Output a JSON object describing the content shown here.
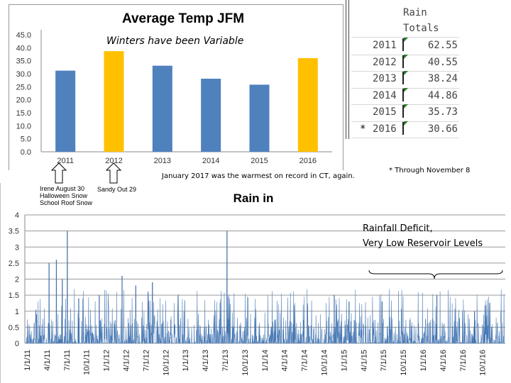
{
  "chart_data": [
    {
      "type": "bar",
      "title": "Average Temp JFM",
      "subtitle": "Winters have been Variable",
      "categories": [
        "2011",
        "2012",
        "2013",
        "2014",
        "2015",
        "2016"
      ],
      "values": [
        31.2,
        38.7,
        33.1,
        28.1,
        25.8,
        36.0
      ],
      "colors": [
        "#4f81bd",
        "#ffc000",
        "#4f81bd",
        "#4f81bd",
        "#4f81bd",
        "#ffc000"
      ],
      "yticks": [
        "0.0",
        "5.0",
        "10.0",
        "15.0",
        "20.0",
        "25.0",
        "30.0",
        "35.0",
        "40.0",
        "45.0"
      ],
      "ylim": [
        0,
        45
      ]
    },
    {
      "type": "table",
      "header": [
        "Rain",
        "Totals"
      ],
      "rows": [
        {
          "marker": "",
          "year": "2011",
          "total": "62.55"
        },
        {
          "marker": "",
          "year": "2012",
          "total": "40.55"
        },
        {
          "marker": "",
          "year": "2013",
          "total": "38.24"
        },
        {
          "marker": "",
          "year": "2014",
          "total": "44.86"
        },
        {
          "marker": "",
          "year": "2015",
          "total": "35.73"
        },
        {
          "marker": "*",
          "year": "2016",
          "total": "30.66"
        }
      ]
    },
    {
      "type": "line",
      "title": "Rain in",
      "yticks": [
        "0",
        "0.5",
        "1",
        "1.5",
        "2",
        "2.5",
        "3",
        "3.5",
        "4"
      ],
      "ylim": [
        0,
        4
      ],
      "xticks": [
        "1/1/11",
        "4/1/11",
        "7/1/11",
        "10/1/11",
        "1/1/12",
        "4/1/12",
        "7/1/12",
        "10/1/12",
        "1/1/13",
        "4/1/13",
        "7/1/13",
        "10/1/13",
        "1/1/14",
        "4/1/14",
        "7/1/14",
        "10/1/14",
        "1/1/15",
        "4/1/15",
        "7/1/15",
        "10/1/15",
        "1/1/16",
        "4/1/16",
        "7/1/16",
        "10/1/16"
      ],
      "peaks": [
        {
          "day": 45,
          "value": 0.9
        },
        {
          "day": 100,
          "value": 2.5
        },
        {
          "day": 132,
          "value": 2.6
        },
        {
          "day": 158,
          "value": 2.0
        },
        {
          "day": 180,
          "value": 3.5
        },
        {
          "day": 230,
          "value": 1.4
        },
        {
          "day": 320,
          "value": 1.5
        },
        {
          "day": 420,
          "value": 2.1
        },
        {
          "day": 480,
          "value": 1.8
        },
        {
          "day": 553,
          "value": 1.9
        },
        {
          "day": 880,
          "value": 3.5
        },
        {
          "day": 1350,
          "value": 1.5
        },
        {
          "day": 1415,
          "value": 1.3
        },
        {
          "day": 1560,
          "value": 1.3
        },
        {
          "day": 1800,
          "value": 1.5
        },
        {
          "day": 1965,
          "value": 1.0
        }
      ]
    }
  ],
  "annotations": {
    "through_note": "* Through November 8",
    "january_note": "January 2017 was the warmest on record in CT, again.",
    "irene_lines": [
      "Irene August 30",
      "Halloween Snow",
      "School Roof Snow"
    ],
    "sandy": "Sandy Out 29",
    "deficit_lines": [
      "Rainfall Deficit,",
      "Very Low Reservoir Levels"
    ]
  }
}
